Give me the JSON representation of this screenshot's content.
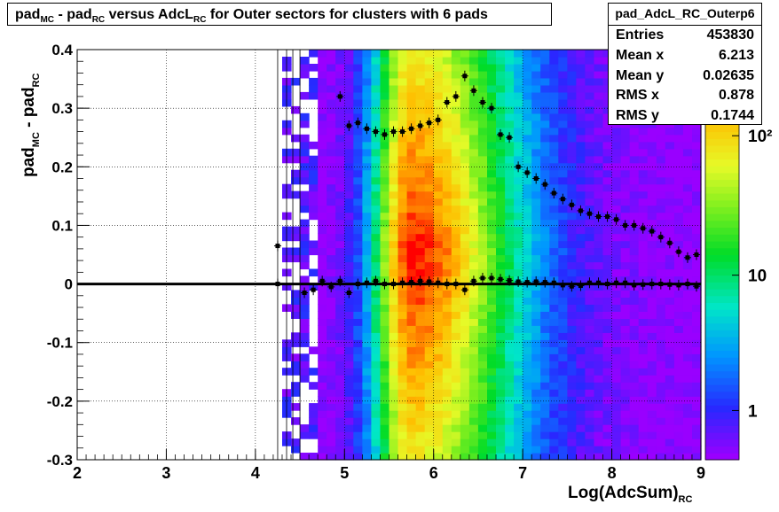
{
  "title": {
    "pre": "pad",
    "sub1": "MC",
    "mid": " - pad",
    "sub2": "RC",
    "post": " versus AdcL",
    "sub3": "RC",
    "tail": " for Outer sectors for clusters with 6 pads"
  },
  "stats": {
    "name": "pad_AdcL_RC_Outerp6",
    "rows": [
      {
        "label": "Entries",
        "value": "453830"
      },
      {
        "label": "Mean x",
        "value": "6.213"
      },
      {
        "label": "Mean y",
        "value": "0.02635"
      },
      {
        "label": "RMS x",
        "value": "0.878"
      },
      {
        "label": "RMS y",
        "value": "0.1744"
      }
    ]
  },
  "ylabel": {
    "p1": "pad",
    "s1": "MC",
    "p2": " - pad",
    "s2": "RC"
  },
  "xlabel": {
    "main": "Log(AdcSum)",
    "sub": "RC"
  },
  "colors": {
    "background": "#ffffff",
    "profile": "#000000"
  },
  "chart_data": {
    "type": "heatmap",
    "x_range": [
      2,
      9
    ],
    "y_range": [
      -0.3,
      0.4
    ],
    "x_ticks": [
      "2",
      "3",
      "4",
      "5",
      "6",
      "7",
      "8",
      "9"
    ],
    "y_ticks": [
      "-0.3",
      "-0.2",
      "-0.1",
      "0",
      "0.1",
      "0.2",
      "0.3",
      "0.4"
    ],
    "z_log": true,
    "z_ticks": [
      "1",
      "10",
      "10²"
    ],
    "density_peak_x": 5.75,
    "profile_upper": {
      "x": [
        4.25,
        4.95,
        5.05,
        5.15,
        5.25,
        5.35,
        5.45,
        5.55,
        5.65,
        5.75,
        5.85,
        5.95,
        6.05,
        6.15,
        6.25,
        6.35,
        6.45,
        6.55,
        6.65,
        6.75,
        6.85,
        6.95,
        7.05,
        7.15,
        7.25,
        7.35,
        7.45,
        7.55,
        7.65,
        7.75,
        7.85,
        7.95,
        8.05,
        8.15,
        8.25,
        8.35,
        8.45,
        8.55,
        8.65,
        8.75,
        8.85,
        8.95
      ],
      "y": [
        0.065,
        0.32,
        0.27,
        0.275,
        0.265,
        0.26,
        0.255,
        0.26,
        0.26,
        0.265,
        0.27,
        0.275,
        0.28,
        0.31,
        0.32,
        0.355,
        0.33,
        0.31,
        0.3,
        0.255,
        0.25,
        0.2,
        0.19,
        0.18,
        0.17,
        0.155,
        0.145,
        0.135,
        0.125,
        0.12,
        0.115,
        0.115,
        0.11,
        0.1,
        0.1,
        0.095,
        0.09,
        0.08,
        0.07,
        0.055,
        0.045,
        0.05
      ]
    },
    "profile_lower": {
      "x": [
        4.25,
        4.55,
        4.65,
        4.75,
        4.85,
        4.95,
        5.05,
        5.15,
        5.25,
        5.35,
        5.45,
        5.55,
        5.65,
        5.75,
        5.85,
        5.95,
        6.05,
        6.15,
        6.25,
        6.35,
        6.45,
        6.55,
        6.65,
        6.75,
        6.85,
        6.95,
        7.05,
        7.15,
        7.25,
        7.35,
        7.45,
        7.55,
        7.65,
        7.75,
        7.85,
        7.95,
        8.05,
        8.15,
        8.25,
        8.35,
        8.45,
        8.55,
        8.65,
        8.75,
        8.85,
        8.95
      ],
      "y": [
        0.0,
        -0.015,
        -0.01,
        0.005,
        -0.005,
        0.005,
        -0.015,
        0.0,
        0.002,
        0.005,
        0.0,
        0.0,
        0.002,
        0.003,
        0.005,
        0.004,
        0.002,
        0.0,
        0.0,
        -0.01,
        0.005,
        0.01,
        0.01,
        0.008,
        0.006,
        0.004,
        0.003,
        0.004,
        0.003,
        0.002,
        -0.002,
        -0.004,
        -0.003,
        0.002,
        0.002,
        0.0,
        0.002,
        0.002,
        -0.002,
        -0.001,
        0.0,
        0.0,
        -0.001,
        -0.002,
        0.0,
        -0.004
      ]
    }
  }
}
